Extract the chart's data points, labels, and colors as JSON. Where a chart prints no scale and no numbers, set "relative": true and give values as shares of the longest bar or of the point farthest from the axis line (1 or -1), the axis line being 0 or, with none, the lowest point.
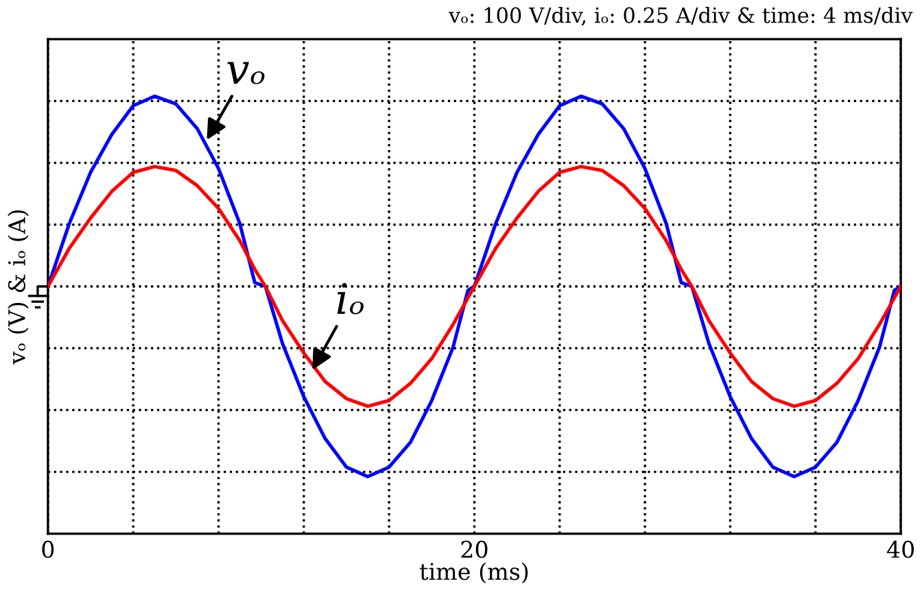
{
  "chart_data": {
    "type": "line",
    "relative": true,
    "subtitle": "vₒ: 100 V/div, iₒ: 0.25 A/div & time: 4 ms/div",
    "xlabel": "time (ms)",
    "ylabel": "vₒ (V) & iₒ (A)",
    "xlim": [
      0,
      40
    ],
    "xticks": [
      0,
      {
        "value": 4,
        "label": null
      },
      {
        "value": 8,
        "label": null
      },
      {
        "value": 12,
        "label": null
      },
      {
        "value": 16,
        "label": null
      },
      20,
      {
        "value": 24,
        "label": null
      },
      {
        "value": 28,
        "label": null
      },
      {
        "value": 32,
        "label": null
      },
      {
        "value": 36,
        "label": null
      },
      40
    ],
    "grid": true,
    "x": [
      0,
      1,
      2,
      3,
      4,
      5,
      6,
      7,
      8,
      9,
      9.7,
      10.2,
      11,
      12,
      13,
      14,
      15,
      16,
      17,
      18,
      19,
      19.7,
      20,
      21,
      22,
      23,
      24,
      25,
      26,
      27,
      28,
      29,
      29.7,
      30.2,
      31,
      32,
      33,
      34,
      35,
      36,
      37,
      38,
      39,
      39.7,
      40
    ],
    "series": [
      {
        "color": "#0000ff",
        "values": [
          0,
          0.33,
          0.6,
          0.8,
          0.95,
          1.0,
          0.96,
          0.83,
          0.62,
          0.33,
          0.02,
          0,
          -0.3,
          -0.58,
          -0.8,
          -0.95,
          -1.0,
          -0.95,
          -0.82,
          -0.6,
          -0.32,
          -0.02,
          0,
          0.33,
          0.6,
          0.8,
          0.95,
          1.0,
          0.96,
          0.83,
          0.62,
          0.33,
          0.02,
          0,
          -0.3,
          -0.58,
          -0.8,
          -0.95,
          -1.0,
          -0.95,
          -0.82,
          -0.6,
          -0.32,
          -0.02,
          0
        ]
      },
      {
        "color": "#ff0000",
        "values": [
          0,
          0.2,
          0.36,
          0.5,
          0.6,
          0.63,
          0.61,
          0.53,
          0.41,
          0.24,
          0.09,
          0.0,
          -0.18,
          -0.35,
          -0.5,
          -0.59,
          -0.63,
          -0.6,
          -0.51,
          -0.38,
          -0.2,
          -0.06,
          0,
          0.2,
          0.36,
          0.5,
          0.6,
          0.63,
          0.61,
          0.53,
          0.41,
          0.24,
          0.09,
          0.0,
          -0.18,
          -0.35,
          -0.5,
          -0.59,
          -0.63,
          -0.6,
          -0.51,
          -0.38,
          -0.2,
          -0.06,
          0
        ]
      }
    ],
    "annotations": [
      {
        "text": "vₒ",
        "x": 7.45,
        "y": 0.77
      },
      {
        "text": "iₒ",
        "x": 12.4,
        "y": -0.44
      }
    ]
  }
}
